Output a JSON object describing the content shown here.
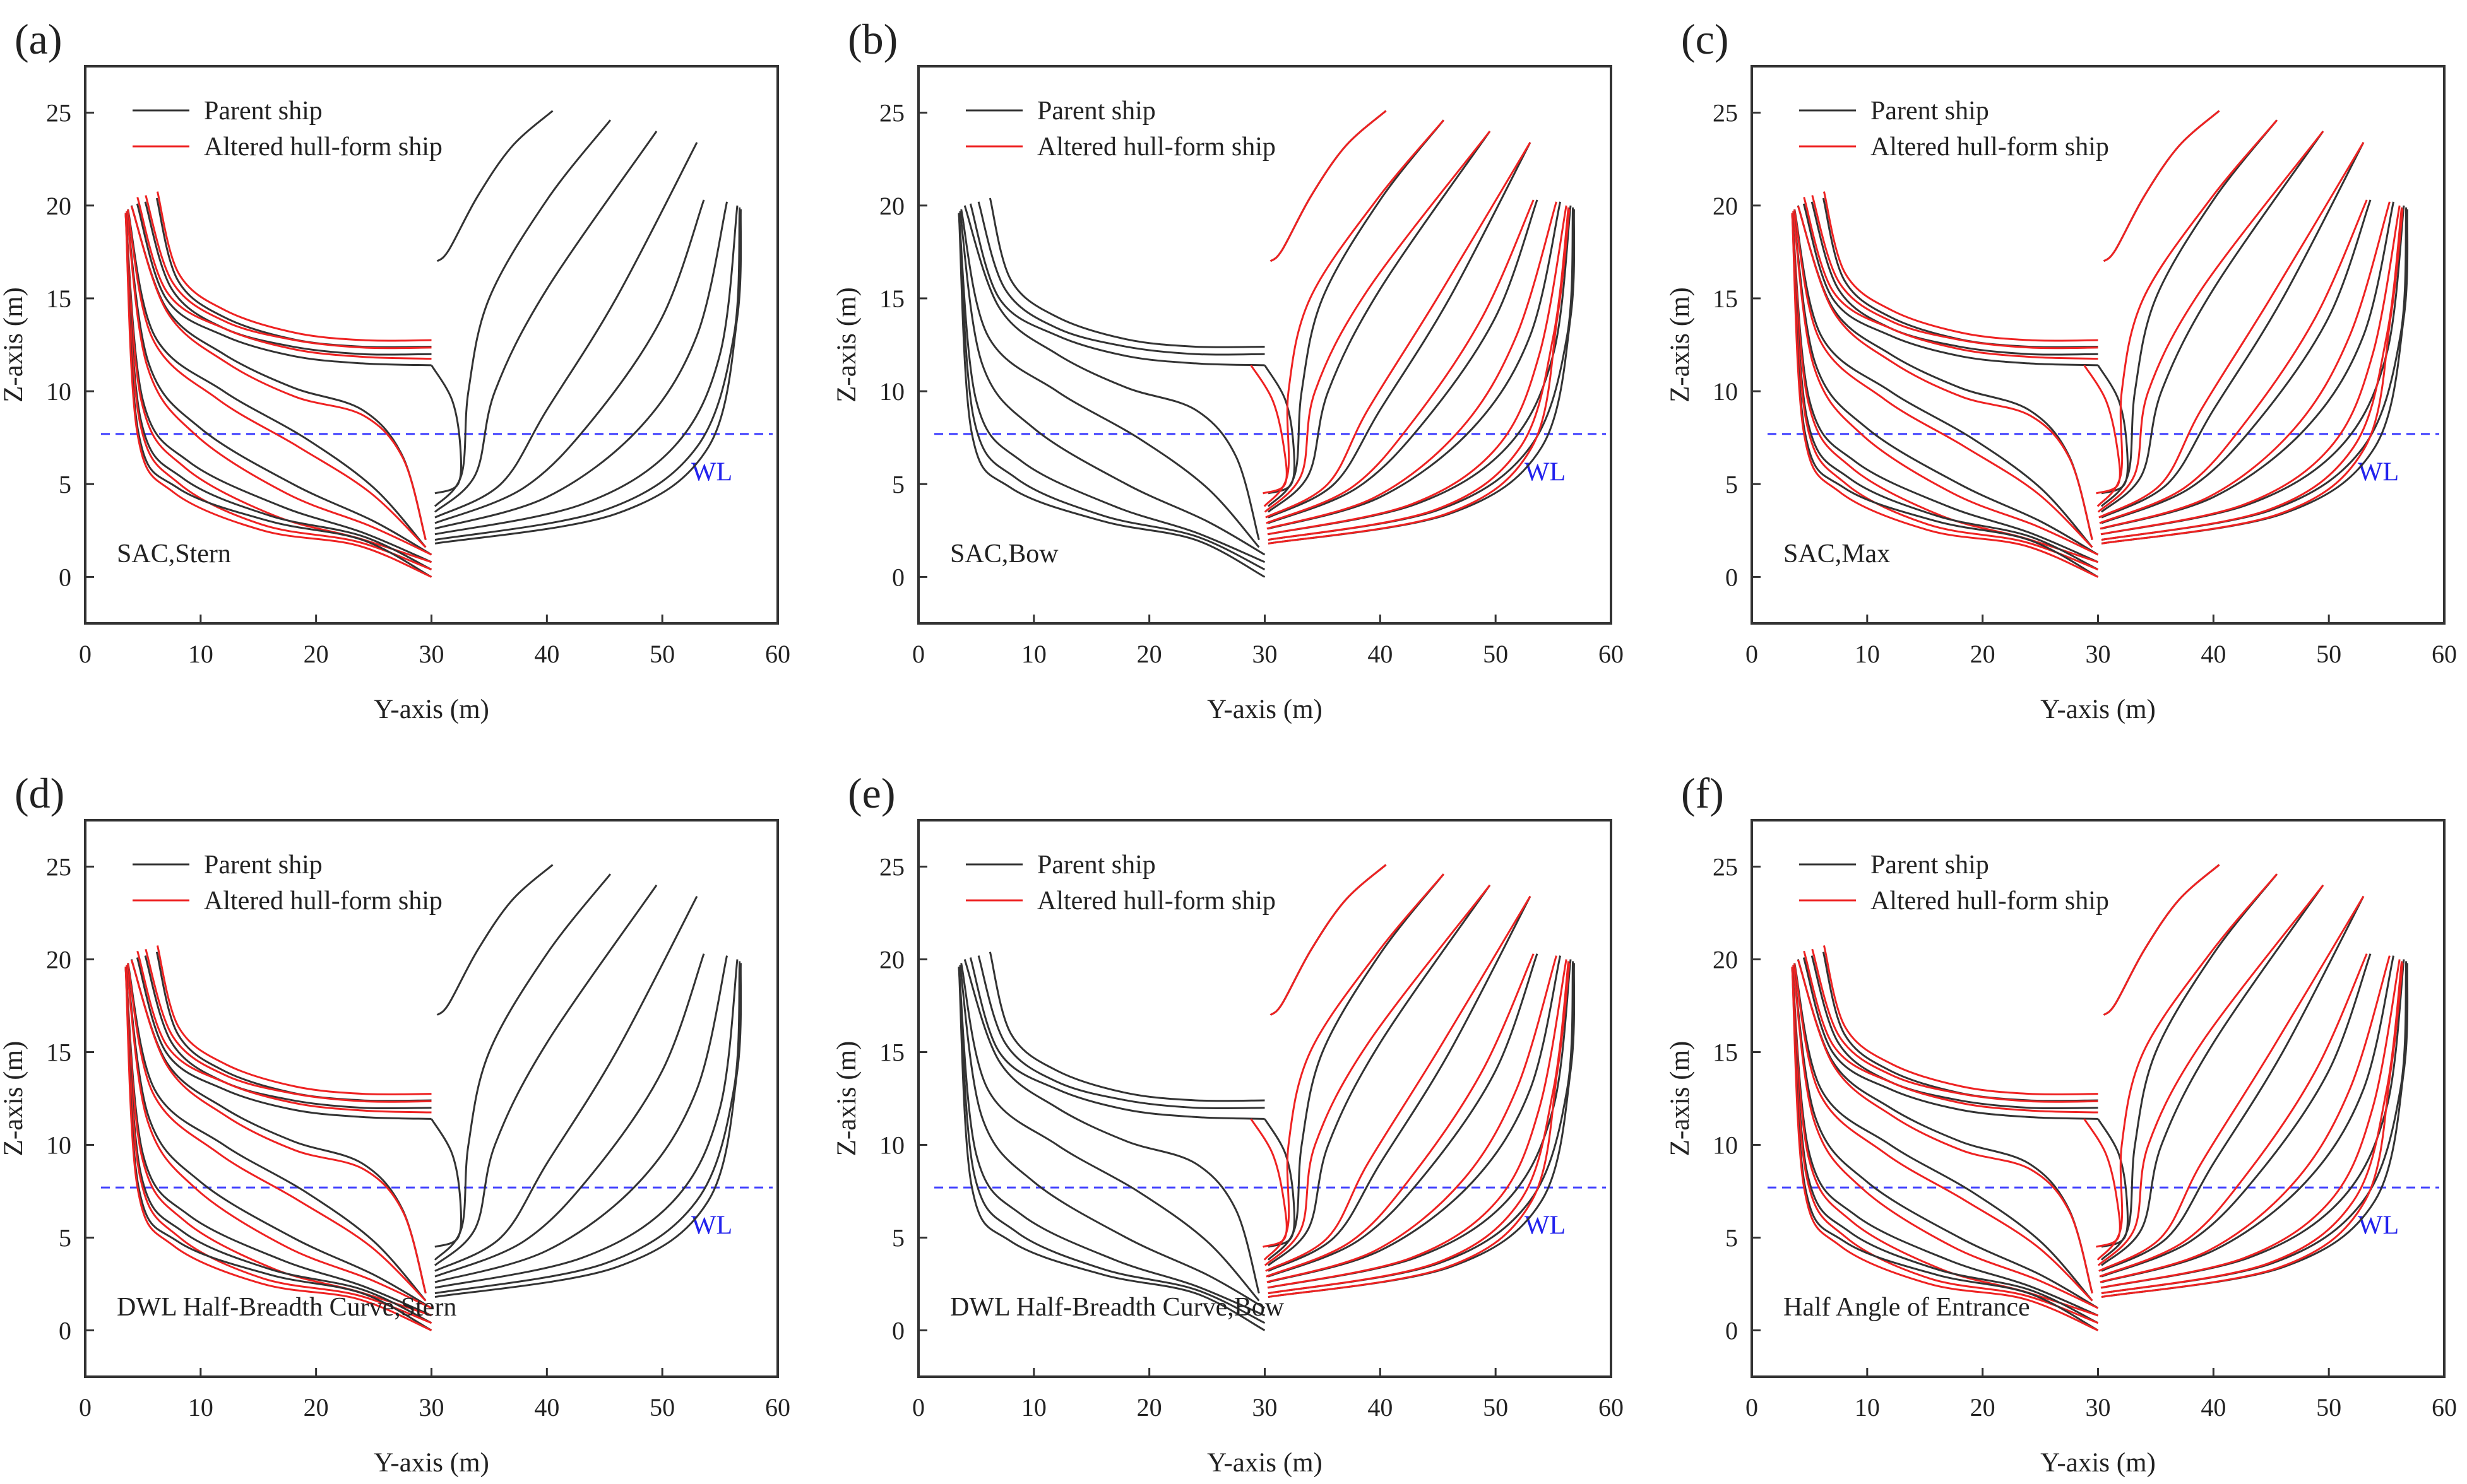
{
  "chart_data": {
    "type": "line",
    "shared": {
      "xlabel": "Y-axis (m)",
      "ylabel": "Z-axis (m)",
      "xlim": [
        0,
        60
      ],
      "ylim": [
        -2.5,
        27.5
      ],
      "xticks": [
        0,
        10,
        20,
        30,
        40,
        50,
        60
      ],
      "yticks": [
        0,
        5,
        10,
        15,
        20,
        25
      ],
      "legend": [
        "Parent ship",
        "Altered hull-form ship"
      ],
      "legend_placement": "top-left",
      "waterline": {
        "z": 7.7,
        "label": "WL",
        "color": "#4444ff"
      },
      "colors": {
        "parent": "#333333",
        "altered": "#ee2222"
      },
      "parent_stations_stern": [
        [
          [
            6.2,
            20.4
          ],
          [
            8,
            16
          ],
          [
            12,
            14
          ],
          [
            18,
            12.8
          ],
          [
            24,
            12.4
          ],
          [
            30,
            12.4
          ]
        ],
        [
          [
            5.2,
            20.2
          ],
          [
            7.5,
            15.5
          ],
          [
            12,
            13.4
          ],
          [
            18,
            12.4
          ],
          [
            24,
            12.0
          ],
          [
            30,
            12.0
          ]
        ],
        [
          [
            4.5,
            20.1
          ],
          [
            7,
            15
          ],
          [
            12,
            13
          ],
          [
            18,
            11.9
          ],
          [
            24,
            11.5
          ],
          [
            30,
            11.4
          ]
        ],
        [
          [
            4,
            20
          ],
          [
            7,
            14.5
          ],
          [
            12,
            12
          ],
          [
            18,
            10.2
          ],
          [
            24,
            9
          ],
          [
            27.5,
            6.5
          ],
          [
            29.5,
            2
          ]
        ],
        [
          [
            3.7,
            19.8
          ],
          [
            6,
            13
          ],
          [
            12,
            10
          ],
          [
            19,
            7.5
          ],
          [
            25,
            4.8
          ],
          [
            29.5,
            1.6
          ]
        ],
        [
          [
            3.6,
            19.7
          ],
          [
            5.5,
            11.5
          ],
          [
            10,
            8
          ],
          [
            18,
            5
          ],
          [
            25,
            3
          ],
          [
            30,
            1.2
          ]
        ],
        [
          [
            3.5,
            19.6
          ],
          [
            5,
            9.5
          ],
          [
            9,
            6.2
          ],
          [
            17,
            3.8
          ],
          [
            24,
            2.4
          ],
          [
            30,
            0.8
          ]
        ],
        [
          [
            3.5,
            19.6
          ],
          [
            4.8,
            8.5
          ],
          [
            8.5,
            5.3
          ],
          [
            16,
            3.3
          ],
          [
            24,
            2.2
          ],
          [
            30,
            0.4
          ]
        ],
        [
          [
            3.5,
            19.6
          ],
          [
            4.6,
            7.8
          ],
          [
            8,
            4.8
          ],
          [
            16,
            3
          ],
          [
            24,
            2
          ],
          [
            30,
            0
          ]
        ]
      ],
      "parent_stations_bow": [
        [
          [
            30.5,
            17
          ],
          [
            31.5,
            17.6
          ],
          [
            34,
            20.5
          ],
          [
            37,
            23.2
          ],
          [
            40.5,
            25.1
          ]
        ],
        [
          [
            30,
            11.4
          ],
          [
            31.8,
            9.5
          ],
          [
            32.5,
            7
          ],
          [
            32.3,
            5
          ],
          [
            30.3,
            4.5
          ]
        ],
        [
          [
            30.3,
            3.8
          ],
          [
            32.6,
            5.5
          ],
          [
            33.2,
            10
          ],
          [
            35,
            15
          ],
          [
            40,
            20.3
          ],
          [
            45.5,
            24.6
          ]
        ],
        [
          [
            30.3,
            3.5
          ],
          [
            33.8,
            5.5
          ],
          [
            35.5,
            10
          ],
          [
            40,
            15.5
          ],
          [
            49.5,
            24
          ]
        ],
        [
          [
            30.3,
            3.2
          ],
          [
            36,
            5
          ],
          [
            40,
            9
          ],
          [
            46,
            15
          ],
          [
            53,
            23.4
          ]
        ],
        [
          [
            30.3,
            2.9
          ],
          [
            38,
            4.8
          ],
          [
            44,
            8.5
          ],
          [
            50,
            14
          ],
          [
            53.6,
            20.3
          ]
        ],
        [
          [
            30.3,
            2.6
          ],
          [
            40,
            4.3
          ],
          [
            48,
            8
          ],
          [
            53,
            13
          ],
          [
            55.6,
            20.2
          ]
        ],
        [
          [
            30.3,
            2.3
          ],
          [
            43,
            3.9
          ],
          [
            51,
            7
          ],
          [
            55,
            12
          ],
          [
            56.5,
            20
          ]
        ],
        [
          [
            30.3,
            2.0
          ],
          [
            45,
            3.6
          ],
          [
            53,
            7
          ],
          [
            56.2,
            13
          ],
          [
            56.7,
            19.9
          ]
        ],
        [
          [
            30.3,
            1.8
          ],
          [
            46,
            3.4
          ],
          [
            54,
            7
          ],
          [
            56.5,
            14
          ],
          [
            56.8,
            19.8
          ]
        ]
      ]
    },
    "panels": [
      {
        "label": "(a)",
        "annotation": "SAC,Stern",
        "altered_side": "stern"
      },
      {
        "label": "(b)",
        "annotation": "SAC,Bow",
        "altered_side": "bow"
      },
      {
        "label": "(c)",
        "annotation": "SAC,Max",
        "altered_side": "both"
      },
      {
        "label": "(d)",
        "annotation": "DWL Half-Breadth Curve,Stern",
        "altered_side": "stern"
      },
      {
        "label": "(e)",
        "annotation": "DWL Half-Breadth Curve,Bow",
        "altered_side": "bow"
      },
      {
        "label": "(f)",
        "annotation": "Half Angle of Entrance",
        "altered_side": "both"
      }
    ]
  }
}
